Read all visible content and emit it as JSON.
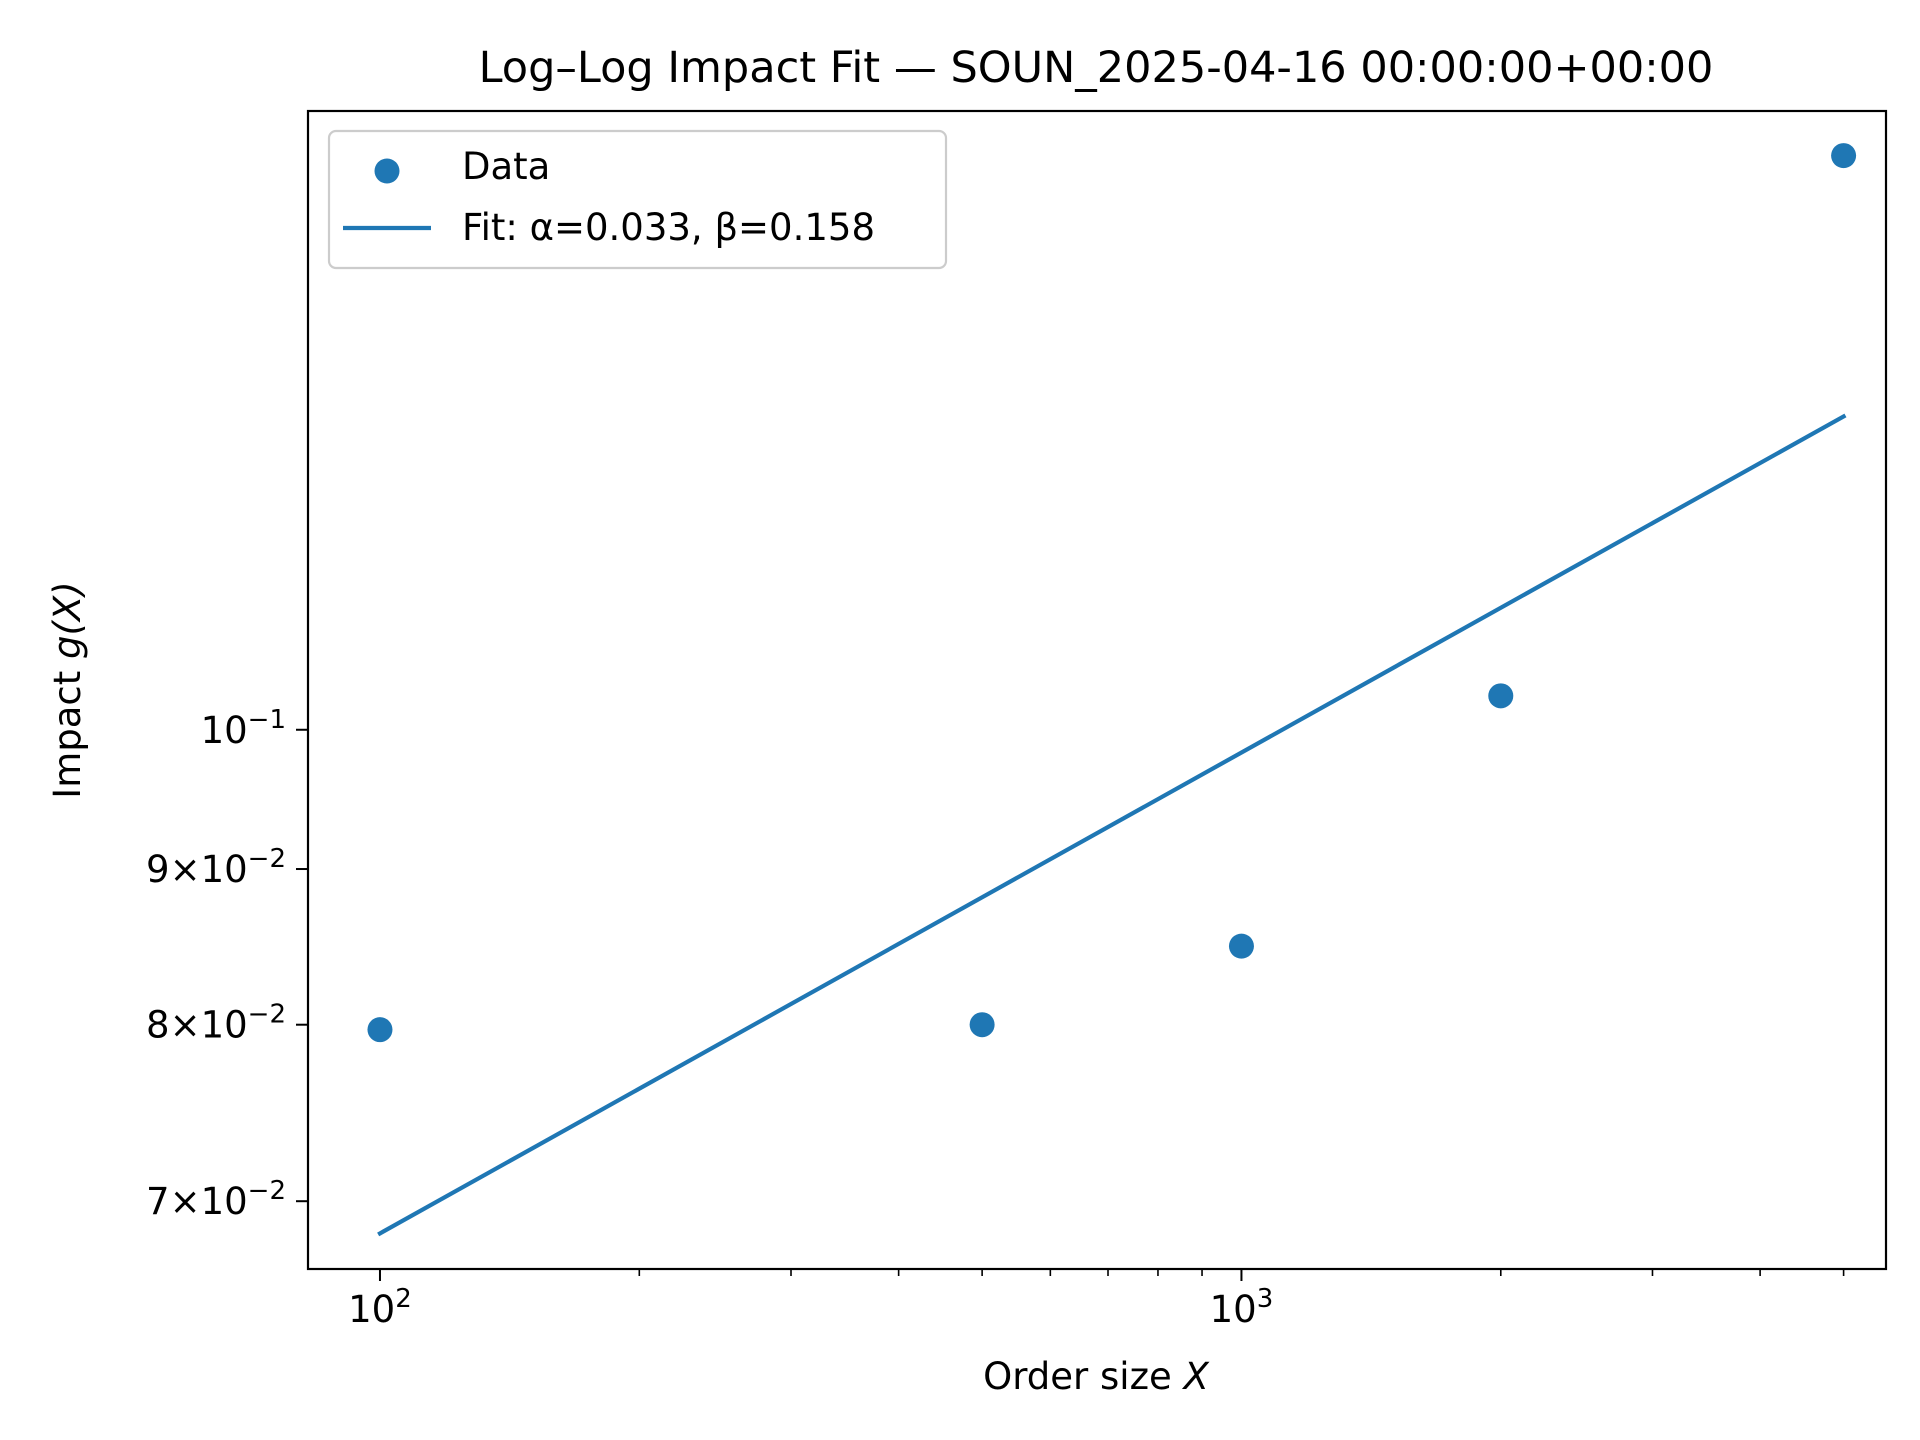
{
  "chart_data": {
    "type": "scatter",
    "title": "Log–Log Impact Fit — SOUN_2025-04-16 00:00:00+00:00",
    "xlabel": {
      "prefix": "Order size ",
      "var": "X"
    },
    "ylabel": {
      "prefix": "Impact ",
      "var": "g(X)"
    },
    "xscale": "log",
    "yscale": "log",
    "xlim": [
      82.5,
      5600
    ],
    "ylim": [
      0.0665,
      0.1597
    ],
    "grid": false,
    "legend_position": "top-left",
    "x_ticks": [
      {
        "value": 100,
        "mantissa": "",
        "base": "10",
        "exp": "2"
      },
      {
        "value": 1000,
        "mantissa": "",
        "base": "10",
        "exp": "3"
      }
    ],
    "x_minor_ticks": [
      200,
      300,
      400,
      500,
      600,
      700,
      800,
      900,
      2000,
      3000,
      4000,
      5000
    ],
    "y_ticks": [
      {
        "value": 0.07,
        "mantissa": "7×",
        "base": "10",
        "exp": "−2"
      },
      {
        "value": 0.08,
        "mantissa": "8×",
        "base": "10",
        "exp": "−2"
      },
      {
        "value": 0.09,
        "mantissa": "9×",
        "base": "10",
        "exp": "−2"
      },
      {
        "value": 0.1,
        "mantissa": "",
        "base": "10",
        "exp": "−1"
      }
    ],
    "series": [
      {
        "name": "Data",
        "kind": "scatter",
        "color": "#1f77b4",
        "x": [
          100,
          500,
          1000,
          2000,
          5000
        ],
        "y": [
          0.0797,
          0.08,
          0.0849,
          0.1026,
          0.1544
        ]
      },
      {
        "name": "Fit: α=0.033, β=0.158",
        "kind": "line",
        "color": "#1f77b4",
        "alpha": 0.033,
        "beta": 0.158,
        "x_range": [
          100,
          5000
        ]
      }
    ]
  }
}
